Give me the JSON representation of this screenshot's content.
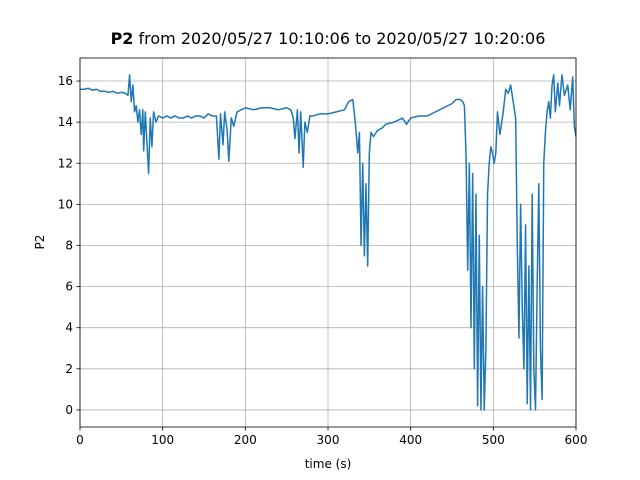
{
  "chart_data": {
    "type": "line",
    "title_bold": "P2",
    "title": "from 2020/05/27 10:10:06 to 2020/05/27 10:20:06",
    "x_label": "time (s)",
    "y_label": "P2",
    "xlim": [
      0,
      600
    ],
    "ylim": [
      -0.83,
      17.12
    ],
    "xticks": [
      0,
      100,
      200,
      300,
      400,
      500,
      600
    ],
    "yticks": [
      0,
      2,
      4,
      6,
      8,
      10,
      12,
      14,
      16
    ],
    "grid": true,
    "series": [
      {
        "name": "P2",
        "color": "#1f77b4",
        "x": [
          0,
          5,
          10,
          15,
          20,
          25,
          30,
          35,
          40,
          45,
          50,
          55,
          58,
          60,
          62,
          64,
          66,
          68,
          70,
          72,
          74,
          76,
          77,
          79,
          81,
          83,
          85,
          87,
          89,
          92,
          95,
          100,
          105,
          110,
          115,
          120,
          125,
          130,
          135,
          140,
          145,
          150,
          155,
          160,
          165,
          168,
          170,
          173,
          175,
          178,
          180,
          183,
          186,
          190,
          195,
          200,
          210,
          220,
          230,
          240,
          250,
          255,
          258,
          260,
          263,
          265,
          267,
          270,
          272,
          275,
          278,
          282,
          290,
          300,
          310,
          320,
          325,
          330,
          333,
          336,
          338,
          340,
          342,
          344,
          346,
          348,
          350,
          352,
          355,
          360,
          365,
          370,
          380,
          390,
          395,
          400,
          410,
          420,
          430,
          440,
          450,
          455,
          460,
          463,
          465,
          467,
          469,
          471,
          473,
          475,
          477,
          479,
          481,
          483,
          485,
          487,
          489,
          491,
          493,
          495,
          497,
          499,
          501,
          503,
          505,
          508,
          512,
          515,
          518,
          521,
          524,
          527,
          529,
          531,
          533,
          535,
          537,
          539,
          541,
          543,
          545,
          547,
          549,
          551,
          553,
          555,
          557,
          559,
          561,
          563,
          565,
          567,
          569,
          571,
          573,
          575,
          578,
          580,
          583,
          586,
          590,
          593,
          596,
          598,
          600
        ],
        "values": [
          15.6,
          15.6,
          15.65,
          15.55,
          15.6,
          15.5,
          15.5,
          15.45,
          15.5,
          15.4,
          15.45,
          15.4,
          15.3,
          16.3,
          15.0,
          15.8,
          14.5,
          14.8,
          14.0,
          14.6,
          13.4,
          14.6,
          12.6,
          14.5,
          13.0,
          11.5,
          14.2,
          12.8,
          14.5,
          14.0,
          14.3,
          14.2,
          14.3,
          14.2,
          14.3,
          14.2,
          14.2,
          14.3,
          14.2,
          14.3,
          14.3,
          14.2,
          14.4,
          14.3,
          14.3,
          12.2,
          14.4,
          12.9,
          14.5,
          13.6,
          12.1,
          14.2,
          13.8,
          14.5,
          14.6,
          14.7,
          14.6,
          14.7,
          14.7,
          14.6,
          14.7,
          14.6,
          14.2,
          13.2,
          14.6,
          12.5,
          14.5,
          11.8,
          14.0,
          13.5,
          14.3,
          14.3,
          14.4,
          14.4,
          14.5,
          14.6,
          15.0,
          15.1,
          14.0,
          12.5,
          13.5,
          8.0,
          12.0,
          7.5,
          11.0,
          7.0,
          12.5,
          13.5,
          13.3,
          13.6,
          13.7,
          13.9,
          14.0,
          14.2,
          13.9,
          14.2,
          14.3,
          14.3,
          14.5,
          14.7,
          14.9,
          15.1,
          15.1,
          15.0,
          14.8,
          12.4,
          6.8,
          12.0,
          4.0,
          11.5,
          2.0,
          10.5,
          0.2,
          8.5,
          0,
          6.0,
          0,
          3.0,
          10.5,
          12.0,
          12.8,
          12.5,
          12.0,
          12.5,
          14.5,
          13.4,
          14.5,
          15.6,
          15.4,
          15.8,
          15.0,
          14.2,
          8.0,
          3.5,
          10.0,
          5.0,
          2.0,
          9.0,
          0.3,
          7.0,
          0,
          10.5,
          2.0,
          0,
          6.0,
          11.0,
          3.0,
          0.5,
          12.0,
          13.5,
          14.5,
          15.0,
          14.2,
          15.8,
          16.3,
          14.5,
          15.9,
          14.8,
          16.3,
          15.3,
          15.8,
          14.6,
          16.2,
          13.8,
          13.3
        ]
      }
    ]
  }
}
